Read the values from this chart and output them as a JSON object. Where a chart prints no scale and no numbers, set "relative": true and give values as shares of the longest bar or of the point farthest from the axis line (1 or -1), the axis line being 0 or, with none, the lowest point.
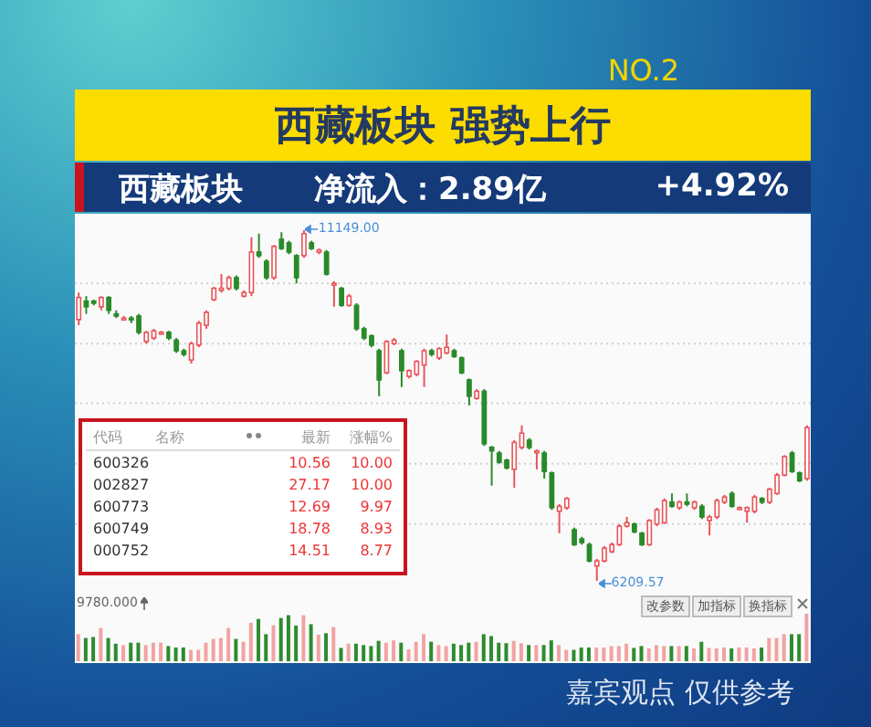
{
  "chart_data": [
    {
      "type": "candlestick",
      "title": "西藏板块 强势上行",
      "subtitle": "西藏板块",
      "annotations": [
        "NO.2",
        "净流入：2.89亿",
        "+4.92%",
        "嘉宾观点 仅供参考",
        "11149.00",
        "6209.57"
      ],
      "categories": [
        null,
        null,
        null,
        null,
        null,
        null,
        null,
        null,
        null,
        null,
        null,
        null,
        null,
        null,
        null,
        null,
        null,
        null,
        null,
        null,
        null,
        null,
        null,
        null,
        null,
        null,
        null,
        null,
        null,
        null,
        null,
        null,
        null,
        null,
        null,
        null,
        null,
        null,
        null,
        null,
        null,
        null,
        null,
        null,
        null,
        null,
        null,
        null,
        null,
        null,
        null,
        null,
        null,
        null,
        null,
        null,
        null,
        null,
        null,
        null,
        null,
        null,
        null,
        null,
        null,
        null,
        null,
        null,
        null,
        null,
        null,
        null,
        null,
        null,
        null,
        null,
        null,
        null,
        null,
        null,
        null,
        null,
        null,
        null,
        null,
        null,
        null,
        null,
        null,
        null,
        null,
        null,
        null,
        null,
        null,
        null,
        null,
        null
      ],
      "grid": "y",
      "tick_labels": false,
      "yticks": [
        {
          "value": 10400,
          "label": null
        },
        {
          "value": 9550,
          "label": null
        },
        {
          "value": 8710,
          "label": null
        },
        {
          "value": 7860,
          "label": null
        },
        {
          "value": 7010,
          "label": null
        }
      ],
      "ohlc": [
        [
          9890,
          10270,
          9810,
          10200
        ],
        [
          10150,
          10220,
          9970,
          10070
        ],
        [
          10150,
          10170,
          10090,
          10120
        ],
        [
          10070,
          10220,
          10020,
          10200
        ],
        [
          10200,
          10220,
          9970,
          10020
        ],
        [
          9970,
          10020,
          9910,
          9940
        ],
        [
          9910,
          9940,
          9890,
          9910
        ],
        [
          9910,
          9940,
          9840,
          9890
        ],
        [
          9940,
          9970,
          9680,
          9710
        ],
        [
          9580,
          9730,
          9550,
          9710
        ],
        [
          9630,
          9760,
          9600,
          9730
        ],
        [
          9710,
          9730,
          9680,
          9710
        ],
        [
          9710,
          9730,
          9600,
          9630
        ],
        [
          9600,
          9630,
          9420,
          9450
        ],
        [
          9450,
          9480,
          9370,
          9400
        ],
        [
          9320,
          9580,
          9270,
          9550
        ],
        [
          9530,
          9870,
          9500,
          9840
        ],
        [
          9810,
          10020,
          9760,
          9990
        ],
        [
          10170,
          10350,
          10150,
          10330
        ],
        [
          10300,
          10530,
          10270,
          10330
        ],
        [
          10330,
          10510,
          10300,
          10480
        ],
        [
          10480,
          10510,
          10300,
          10330
        ],
        [
          10220,
          10300,
          10200,
          10270
        ],
        [
          10270,
          11050,
          10220,
          10840
        ],
        [
          10840,
          11100,
          10760,
          10790
        ],
        [
          10710,
          10740,
          10450,
          10480
        ],
        [
          10480,
          10940,
          10450,
          10920
        ],
        [
          11020,
          11120,
          10870,
          10890
        ],
        [
          10970,
          11000,
          10810,
          10840
        ],
        [
          10790,
          10810,
          10400,
          10480
        ],
        [
          10790,
          11149,
          10760,
          11100
        ],
        [
          10970,
          11000,
          10870,
          10890
        ],
        [
          10840,
          10890,
          10810,
          10870
        ],
        [
          10840,
          10870,
          10510,
          10530
        ],
        [
          10400,
          10430,
          10070,
          10400
        ],
        [
          10330,
          10350,
          10070,
          10090
        ],
        [
          10090,
          10250,
          10070,
          10220
        ],
        [
          10090,
          10120,
          9730,
          9760
        ],
        [
          9760,
          9790,
          9600,
          9630
        ],
        [
          9660,
          9680,
          9500,
          9530
        ],
        [
          9450,
          9480,
          8810,
          9040
        ],
        [
          9140,
          9600,
          9120,
          9580
        ],
        [
          9550,
          9630,
          9530,
          9600
        ],
        [
          9450,
          9480,
          8940,
          9170
        ],
        [
          9090,
          9190,
          9060,
          9170
        ],
        [
          9120,
          9320,
          9090,
          9300
        ],
        [
          9250,
          9480,
          8940,
          9450
        ],
        [
          9450,
          9480,
          9370,
          9400
        ],
        [
          9350,
          9500,
          9320,
          9480
        ],
        [
          9420,
          9680,
          9400,
          9500
        ],
        [
          9450,
          9480,
          9350,
          9370
        ],
        [
          9350,
          9370,
          9120,
          9140
        ],
        [
          9040,
          9060,
          8680,
          8810
        ],
        [
          8780,
          8910,
          8760,
          8880
        ],
        [
          8880,
          8910,
          8110,
          8140
        ],
        [
          8090,
          8110,
          7550,
          8040
        ],
        [
          8010,
          8040,
          7860,
          7880
        ],
        [
          7910,
          7930,
          7780,
          7800
        ],
        [
          7780,
          8190,
          7520,
          8160
        ],
        [
          8090,
          8400,
          8060,
          8290
        ],
        [
          8190,
          8220,
          8060,
          8090
        ],
        [
          8040,
          8060,
          7780,
          8040
        ],
        [
          8010,
          8040,
          7650,
          7750
        ],
        [
          7730,
          7750,
          7210,
          7240
        ],
        [
          7190,
          7290,
          6880,
          7260
        ],
        [
          7240,
          7390,
          7210,
          7370
        ],
        [
          6930,
          6960,
          6700,
          6720
        ],
        [
          6800,
          6830,
          6720,
          6750
        ],
        [
          6720,
          6750,
          6470,
          6490
        ],
        [
          6420,
          6520,
          6209.57,
          6490
        ],
        [
          6490,
          6700,
          6470,
          6670
        ],
        [
          6620,
          6750,
          6600,
          6720
        ],
        [
          6720,
          7010,
          6700,
          6980
        ],
        [
          6980,
          7110,
          6960,
          7030
        ],
        [
          7010,
          7030,
          6880,
          6900
        ],
        [
          6880,
          6900,
          6700,
          6720
        ],
        [
          6720,
          7080,
          6700,
          7060
        ],
        [
          7010,
          7240,
          6980,
          7210
        ],
        [
          7030,
          7370,
          7010,
          7340
        ],
        [
          7320,
          7440,
          7240,
          7260
        ],
        [
          7240,
          7340,
          7210,
          7320
        ],
        [
          7320,
          7440,
          7260,
          7290
        ],
        [
          7240,
          7340,
          7210,
          7320
        ],
        [
          7260,
          7290,
          7080,
          7110
        ],
        [
          7060,
          7140,
          6850,
          7110
        ],
        [
          7110,
          7370,
          7080,
          7340
        ],
        [
          7320,
          7420,
          7290,
          7390
        ],
        [
          7440,
          7470,
          7240,
          7260
        ],
        [
          7240,
          7260,
          7210,
          7240
        ],
        [
          7190,
          7260,
          7030,
          7240
        ],
        [
          7190,
          7420,
          7160,
          7390
        ],
        [
          7370,
          7390,
          7290,
          7320
        ],
        [
          7320,
          7520,
          7290,
          7500
        ],
        [
          7440,
          7730,
          7420,
          7700
        ],
        [
          7700,
          7980,
          7680,
          7960
        ],
        [
          8010,
          8040,
          7730,
          7750
        ],
        [
          7730,
          7750,
          7600,
          7620
        ],
        [
          7650,
          8400,
          7620,
          8370
        ]
      ]
    },
    {
      "type": "bar",
      "relative": true,
      "annotations": [
        "9780.000",
        "改参数",
        "加指标",
        "换指标"
      ],
      "categories": [
        null,
        null,
        null,
        null,
        null,
        null,
        null,
        null,
        null,
        null,
        null,
        null,
        null,
        null,
        null,
        null,
        null,
        null,
        null,
        null,
        null,
        null,
        null,
        null,
        null,
        null,
        null,
        null,
        null,
        null,
        null,
        null,
        null,
        null,
        null,
        null,
        null,
        null,
        null,
        null,
        null,
        null,
        null,
        null,
        null,
        null,
        null,
        null,
        null,
        null,
        null,
        null,
        null,
        null,
        null,
        null,
        null,
        null,
        null,
        null,
        null,
        null,
        null,
        null,
        null,
        null,
        null,
        null,
        null,
        null,
        null,
        null,
        null,
        null,
        null,
        null,
        null,
        null,
        null,
        null,
        null,
        null,
        null,
        null,
        null,
        null,
        null,
        null,
        null,
        null,
        null,
        null,
        null,
        null,
        null,
        null,
        null,
        null
      ],
      "values": [
        0.57,
        0.49,
        0.51,
        0.7,
        0.49,
        0.37,
        0.34,
        0.39,
        0.39,
        0.34,
        0.39,
        0.39,
        0.32,
        0.29,
        0.29,
        0.24,
        0.24,
        0.39,
        0.47,
        0.49,
        0.7,
        0.47,
        0.41,
        0.81,
        0.89,
        0.57,
        0.76,
        0.91,
        0.97,
        0.75,
        0.97,
        0.78,
        0.56,
        0.59,
        0.72,
        0.28,
        0.37,
        0.37,
        0.34,
        0.32,
        0.43,
        0.39,
        0.44,
        0.39,
        0.25,
        0.41,
        0.57,
        0.41,
        0.34,
        0.32,
        0.37,
        0.34,
        0.39,
        0.41,
        0.57,
        0.53,
        0.39,
        0.38,
        0.43,
        0.38,
        0.34,
        0.34,
        0.34,
        0.44,
        0.34,
        0.24,
        0.24,
        0.29,
        0.29,
        0.29,
        0.29,
        0.32,
        0.32,
        0.37,
        0.28,
        0.32,
        0.27,
        0.34,
        0.32,
        0.32,
        0.32,
        0.32,
        0.27,
        0.41,
        0.28,
        0.27,
        0.29,
        0.27,
        0.29,
        0.29,
        0.27,
        0.29,
        0.49,
        0.49,
        0.57,
        0.57,
        0.57,
        1
      ],
      "colors": [
        "#f2a3a3",
        "#2e8b2e",
        "#2e8b2e",
        "#f2a3a3",
        "#2e8b2e",
        "#2e8b2e",
        "#f2a3a3",
        "#2e8b2e",
        "#2e8b2e",
        "#f2a3a3",
        "#f2a3a3",
        "#f2a3a3",
        "#2e8b2e",
        "#2e8b2e",
        "#2e8b2e",
        "#f2a3a3",
        "#f2a3a3",
        "#f2a3a3",
        "#f2a3a3",
        "#f2a3a3",
        "#f2a3a3",
        "#2e8b2e",
        "#f2a3a3",
        "#f2a3a3",
        "#2e8b2e",
        "#2e8b2e",
        "#f2a3a3",
        "#2e8b2e",
        "#2e8b2e",
        "#2e8b2e",
        "#f2a3a3",
        "#2e8b2e",
        "#f2a3a3",
        "#2e8b2e",
        "#f2a3a3",
        "#2e8b2e",
        "#f2a3a3",
        "#2e8b2e",
        "#2e8b2e",
        "#2e8b2e",
        "#2e8b2e",
        "#f2a3a3",
        "#f2a3a3",
        "#2e8b2e",
        "#f2a3a3",
        "#f2a3a3",
        "#f2a3a3",
        "#2e8b2e",
        "#f2a3a3",
        "#f2a3a3",
        "#2e8b2e",
        "#2e8b2e",
        "#2e8b2e",
        "#f2a3a3",
        "#2e8b2e",
        "#2e8b2e",
        "#2e8b2e",
        "#2e8b2e",
        "#f2a3a3",
        "#f2a3a3",
        "#2e8b2e",
        "#f2a3a3",
        "#2e8b2e",
        "#2e8b2e",
        "#f2a3a3",
        "#f2a3a3",
        "#2e8b2e",
        "#2e8b2e",
        "#2e8b2e",
        "#f2a3a3",
        "#f2a3a3",
        "#f2a3a3",
        "#f2a3a3",
        "#f2a3a3",
        "#2e8b2e",
        "#2e8b2e",
        "#f2a3a3",
        "#f2a3a3",
        "#f2a3a3",
        "#2e8b2e",
        "#f2a3a3",
        "#2e8b2e",
        "#f2a3a3",
        "#2e8b2e",
        "#f2a3a3",
        "#f2a3a3",
        "#f2a3a3",
        "#2e8b2e",
        "#f2a3a3",
        "#f2a3a3",
        "#f2a3a3",
        "#2e8b2e",
        "#f2a3a3",
        "#f2a3a3",
        "#f2a3a3",
        "#2e8b2e",
        "#2e8b2e",
        "#f2a3a3"
      ]
    },
    {
      "type": "other",
      "annotations": [
        "代码",
        "名称",
        "最新",
        "涨幅%",
        "600326",
        "10.56",
        "10.00",
        "002827",
        "27.17",
        "10.00",
        "600773",
        "12.69",
        "9.97",
        "600749",
        "18.78",
        "8.93",
        "000752",
        "14.51",
        "8.77"
      ]
    }
  ]
}
